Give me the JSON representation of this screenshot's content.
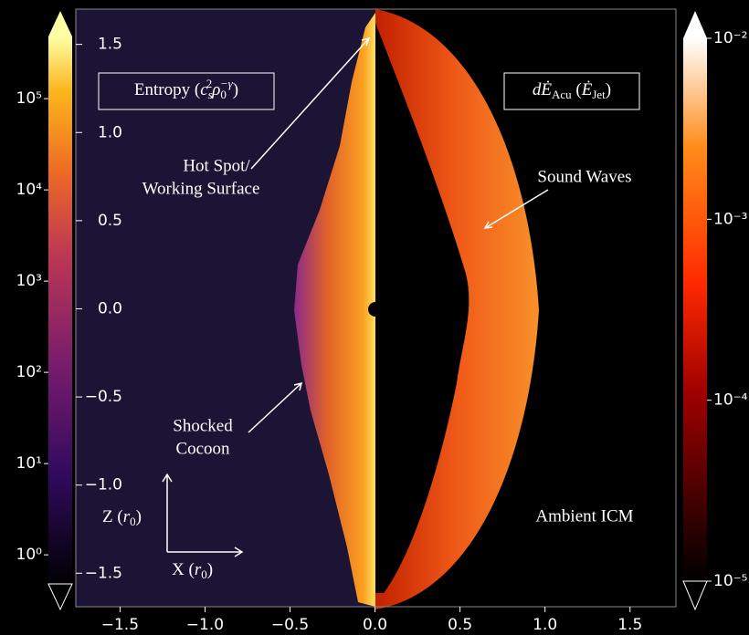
{
  "chart_data": {
    "type": "image",
    "xlim": [
      -1.76,
      1.77
    ],
    "xticks": [
      {
        "value": -1.5,
        "label": "−1.5"
      },
      {
        "value": -1.0,
        "label": "−1.0"
      },
      {
        "value": -0.5,
        "label": "−0.5"
      },
      {
        "value": 0,
        "label": "0.0"
      },
      0.5,
      {
        "value": 1.0,
        "label": "1.0"
      },
      1.5
    ],
    "ylim": [
      -1.69,
      1.7
    ],
    "yticks": [
      1.5,
      {
        "value": 1.0,
        "label": "1.0"
      },
      0.5,
      {
        "value": 0,
        "label": "0.0"
      },
      {
        "value": -0.5,
        "label": "−0.5"
      },
      {
        "value": -1.0,
        "label": "−1.0"
      },
      {
        "value": -1.5,
        "label": "−1.5"
      }
    ],
    "left_colorbar": {
      "log_scale": true,
      "clim": [
        0.48,
        480000
      ],
      "ticks": [
        {
          "value": 1,
          "label": "10⁰"
        },
        {
          "value": 10,
          "label": "10¹"
        },
        {
          "value": 100,
          "label": "10²"
        },
        {
          "value": 1000,
          "label": "10³"
        },
        {
          "value": 10000,
          "label": "10⁴"
        },
        {
          "value": 100000,
          "label": "10⁵"
        }
      ]
    },
    "right_colorbar": {
      "log_scale": true,
      "clim": [
        1e-05,
        0.01
      ],
      "ticks": [
        {
          "value": 1e-05,
          "label": "10⁻⁵"
        },
        {
          "value": 0.0001,
          "label": "10⁻⁴"
        },
        {
          "value": 0.001,
          "label": "10⁻³"
        },
        {
          "value": 0.01,
          "label": "10⁻²"
        }
      ]
    },
    "left_label": [
      "Entropy (",
      "c",
      "s",
      "2",
      "ρ",
      "0",
      "−γ",
      ")"
    ],
    "right_label": [
      "dĖ",
      "Acu",
      " (",
      "Ė",
      "Jet",
      ")"
    ],
    "z_label": [
      "Z (",
      "r",
      "0",
      ")"
    ],
    "x_label": [
      "X (",
      "r",
      "0",
      ")"
    ],
    "annotations": {
      "hot_spot": [
        "Hot Spot/",
        "Working Surface"
      ],
      "sound_waves": "Sound Waves",
      "shocked_cocoon": [
        "Shocked",
        "Cocoon"
      ],
      "ambient": "Ambient ICM"
    }
  }
}
